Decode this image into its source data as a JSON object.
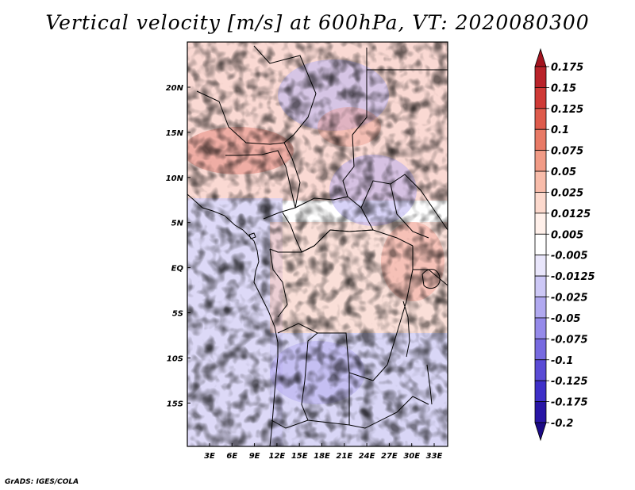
{
  "title": "Vertical velocity [m/s] at 600hPa, VT: 2020080300",
  "footer": "GrADS: IGES/COLA",
  "lat_labels": [
    "20N",
    "15N",
    "10N",
    "5N",
    "EQ",
    "5S",
    "10S",
    "15S"
  ],
  "lon_labels": [
    "3E",
    "6E",
    "9E",
    "12E",
    "15E",
    "18E",
    "21E",
    "24E",
    "27E",
    "30E",
    "33E"
  ],
  "colorbar": {
    "labels": [
      "0.175",
      "0.15",
      "0.125",
      "0.1",
      "0.075",
      "0.05",
      "0.025",
      "0.0125",
      "0.005",
      "-0.005",
      "-0.0125",
      "-0.025",
      "-0.05",
      "-0.075",
      "-0.1",
      "-0.125",
      "-0.175",
      "-0.2"
    ],
    "colors": [
      "#a3141f",
      "#b9232a",
      "#cf3a36",
      "#de5b4c",
      "#e87a66",
      "#f19b86",
      "#f8bcaa",
      "#fcd9cd",
      "#fff0ea",
      "#ffffff",
      "#e9e6fb",
      "#cdc8f6",
      "#b1a9f0",
      "#958aea",
      "#776ae0",
      "#5a4bd5",
      "#3e2fc8",
      "#2815a5",
      "#1b0a85"
    ]
  },
  "colors": {
    "positive": "#d7303a",
    "negative": "#5a4bd5",
    "border": "#000000"
  }
}
